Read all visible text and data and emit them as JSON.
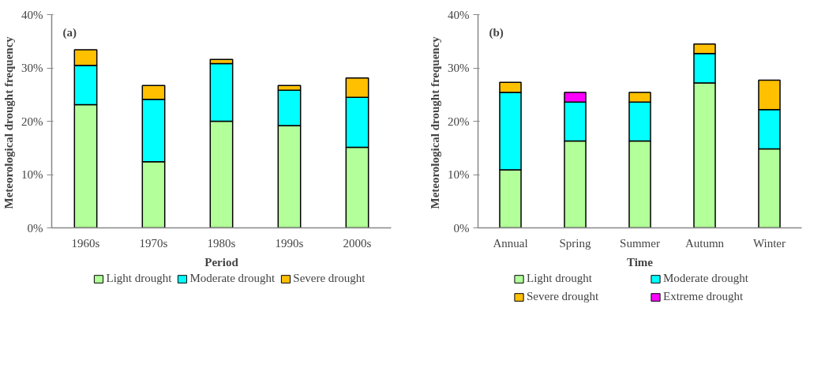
{
  "chart_data": [
    {
      "type": "bar",
      "stacked": true,
      "xlabel": "Period",
      "ylabel": "Meteorological drought  frequency",
      "annotations": [
        "(a)"
      ],
      "categories": [
        "1960s",
        "1970s",
        "1980s",
        "1990s",
        "2000s"
      ],
      "series": [
        {
          "name": "Light drought",
          "color": "#b3ff99",
          "values": [
            23.1,
            12.4,
            20.0,
            19.2,
            15.1
          ]
        },
        {
          "name": "Moderate drought",
          "color": "#00ffff",
          "values": [
            7.4,
            11.7,
            10.8,
            6.6,
            9.4
          ]
        },
        {
          "name": "Severe drought",
          "color": "#ffc000",
          "values": [
            2.9,
            2.6,
            0.8,
            0.9,
            3.6
          ]
        }
      ],
      "ylim": [
        0,
        40
      ],
      "yticks": [
        {
          "value": 0,
          "label": "0%"
        },
        {
          "value": 10,
          "label": "10%"
        },
        {
          "value": 20,
          "label": "20%"
        },
        {
          "value": 30,
          "label": "30%"
        },
        {
          "value": 40,
          "label": "40%"
        }
      ],
      "grid": false,
      "legend": "bottom"
    },
    {
      "type": "bar",
      "stacked": true,
      "xlabel": "Time",
      "ylabel": "Meteorological drought  frequency",
      "annotations": [
        "(b)"
      ],
      "categories": [
        "Annual",
        "Spring",
        "Summer",
        "Autumn",
        "Winter"
      ],
      "series": [
        {
          "name": "Light drought",
          "color": "#b3ff99",
          "values": [
            10.9,
            16.3,
            16.3,
            27.2,
            14.8
          ]
        },
        {
          "name": "Moderate drought",
          "color": "#00ffff",
          "values": [
            14.5,
            7.3,
            7.3,
            5.5,
            7.4
          ]
        },
        {
          "name": "Severe drought",
          "color": "#ffc000",
          "values": [
            1.9,
            0,
            1.8,
            1.8,
            5.5
          ]
        },
        {
          "name": "Extreme drought",
          "color": "#ff00ff",
          "values": [
            0,
            1.8,
            0,
            0,
            0
          ]
        }
      ],
      "ylim": [
        0,
        40
      ],
      "yticks": [
        {
          "value": 0,
          "label": "0%"
        },
        {
          "value": 10,
          "label": "10%"
        },
        {
          "value": 20,
          "label": "20%"
        },
        {
          "value": 30,
          "label": "30%"
        },
        {
          "value": 40,
          "label": "40%"
        }
      ],
      "grid": false,
      "legend": "bottom"
    }
  ]
}
